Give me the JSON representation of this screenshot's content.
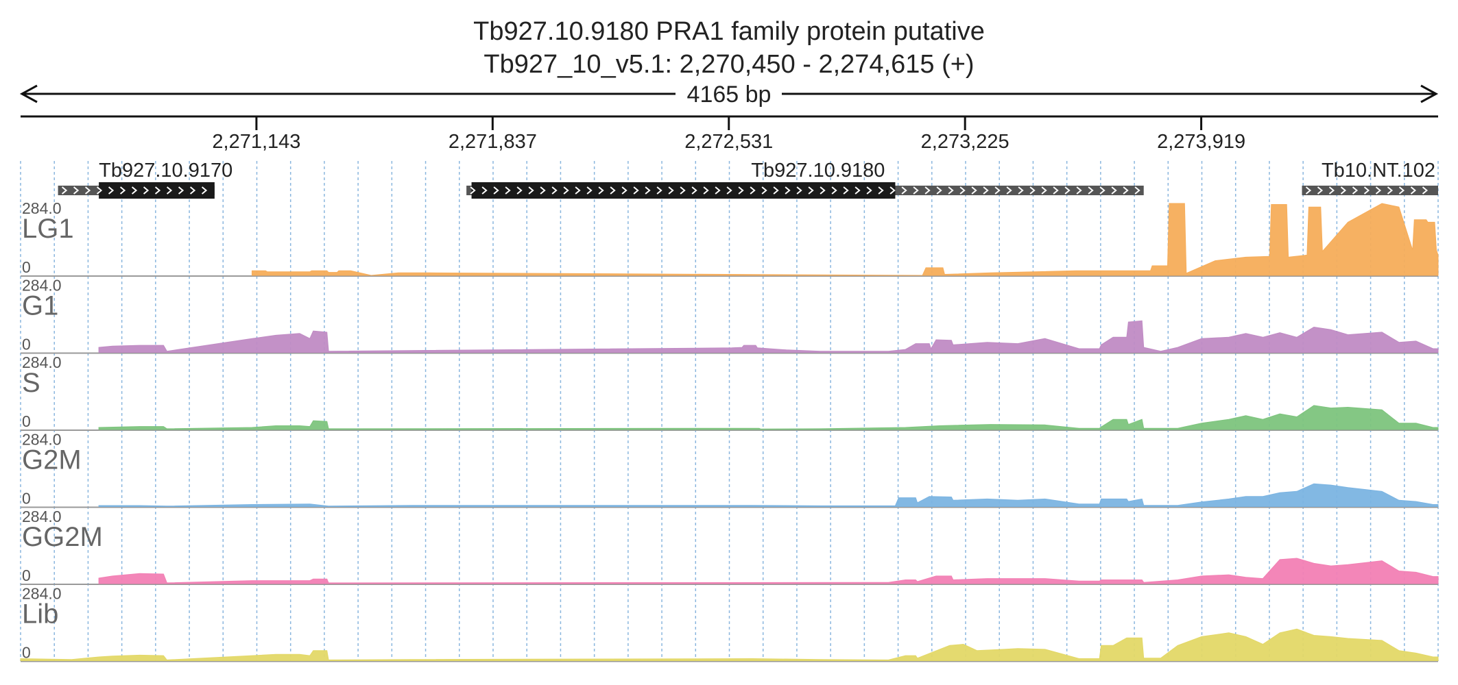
{
  "header": {
    "title": "Tb927.10.9180  PRA1 family protein  putative",
    "subtitle": "Tb927_10_v5.1: 2,270,450 - 2,274,615 (+)",
    "span_label": "4165 bp"
  },
  "chart_data": {
    "type": "area",
    "subtype": "genome-browser coverage tracks",
    "chromosome": "Tb927_10_v5.1",
    "region": [
      2270450,
      2274615
    ],
    "strand": "+",
    "span_bp": 4165,
    "ticks": [
      {
        "pos": 2271143,
        "label": "2,271,143"
      },
      {
        "pos": 2271837,
        "label": "2,271,837"
      },
      {
        "pos": 2272531,
        "label": "2,272,531"
      },
      {
        "pos": 2273225,
        "label": "2,273,225"
      },
      {
        "pos": 2273919,
        "label": "2,273,919"
      }
    ],
    "genes": [
      {
        "label": "Tb927.10.9170",
        "start": 2270560,
        "end": 2271020,
        "cds_start": 2270680,
        "cds_end": 2271020,
        "strand": "+"
      },
      {
        "label": "Tb927.10.9180",
        "start": 2271760,
        "end": 2273750,
        "cds_start": 2271775,
        "cds_end": 2273020,
        "strand": "+"
      },
      {
        "label": "Tb10.NT.102",
        "start": 2274215,
        "end": 2274615,
        "cds_start": null,
        "cds_end": null,
        "strand": "+"
      }
    ],
    "track_ymax": 284.0,
    "ymax_label": "284.0",
    "ymin_label": "0",
    "grid": "vertical dashed",
    "tracks": [
      {
        "name": "LG1",
        "color": "#f6ad5a",
        "points": [
          [
            2271130,
            18
          ],
          [
            2271170,
            18
          ],
          [
            2271175,
            14
          ],
          [
            2271300,
            14
          ],
          [
            2271305,
            18
          ],
          [
            2271350,
            18
          ],
          [
            2271355,
            12
          ],
          [
            2271380,
            12
          ],
          [
            2271385,
            18
          ],
          [
            2271420,
            18
          ],
          [
            2271480,
            0
          ],
          [
            2271560,
            10
          ],
          [
            2271650,
            10
          ],
          [
            2273100,
            0
          ],
          [
            2273110,
            30
          ],
          [
            2273160,
            30
          ],
          [
            2273165,
            4
          ],
          [
            2273300,
            10
          ],
          [
            2273550,
            18
          ],
          [
            2273770,
            18
          ],
          [
            2273775,
            38
          ],
          [
            2273820,
            38
          ],
          [
            2273825,
            284
          ],
          [
            2273870,
            284
          ],
          [
            2273875,
            8
          ],
          [
            2273960,
            58
          ],
          [
            2274050,
            72
          ],
          [
            2274120,
            75
          ],
          [
            2274125,
            280
          ],
          [
            2274170,
            280
          ],
          [
            2274175,
            72
          ],
          [
            2274230,
            80
          ],
          [
            2274235,
            270
          ],
          [
            2274270,
            270
          ],
          [
            2274275,
            95
          ],
          [
            2274350,
            210
          ],
          [
            2274450,
            284
          ],
          [
            2274500,
            270
          ],
          [
            2274540,
            100
          ],
          [
            2274545,
            220
          ],
          [
            2274580,
            220
          ],
          [
            2274585,
            210
          ],
          [
            2274605,
            210
          ],
          [
            2274610,
            100
          ],
          [
            2274615,
            80
          ]
        ]
      },
      {
        "name": "G1",
        "color": "#c08bc4",
        "points": [
          [
            2270680,
            20
          ],
          [
            2270720,
            25
          ],
          [
            2270800,
            28
          ],
          [
            2270870,
            28
          ],
          [
            2270880,
            5
          ],
          [
            2271130,
            55
          ],
          [
            2271200,
            68
          ],
          [
            2271270,
            75
          ],
          [
            2271300,
            55
          ],
          [
            2271310,
            85
          ],
          [
            2271350,
            80
          ],
          [
            2271355,
            5
          ],
          [
            2272540,
            18
          ],
          [
            2272570,
            20
          ],
          [
            2272575,
            28
          ],
          [
            2272610,
            28
          ],
          [
            2272615,
            18
          ],
          [
            2272700,
            10
          ],
          [
            2272800,
            5
          ],
          [
            2273000,
            5
          ],
          [
            2273050,
            12
          ],
          [
            2273080,
            35
          ],
          [
            2273120,
            35
          ],
          [
            2273125,
            15
          ],
          [
            2273140,
            50
          ],
          [
            2273185,
            48
          ],
          [
            2273190,
            30
          ],
          [
            2273290,
            40
          ],
          [
            2273380,
            35
          ],
          [
            2273460,
            55
          ],
          [
            2273560,
            15
          ],
          [
            2273620,
            15
          ],
          [
            2273625,
            30
          ],
          [
            2273660,
            60
          ],
          [
            2273700,
            60
          ],
          [
            2273705,
            120
          ],
          [
            2273745,
            125
          ],
          [
            2273750,
            20
          ],
          [
            2273800,
            5
          ],
          [
            2273850,
            20
          ],
          [
            2273920,
            55
          ],
          [
            2274000,
            60
          ],
          [
            2274050,
            75
          ],
          [
            2274100,
            60
          ],
          [
            2274150,
            78
          ],
          [
            2274200,
            60
          ],
          [
            2274250,
            100
          ],
          [
            2274300,
            90
          ],
          [
            2274350,
            70
          ],
          [
            2274450,
            80
          ],
          [
            2274500,
            40
          ],
          [
            2274550,
            45
          ],
          [
            2274600,
            15
          ],
          [
            2274615,
            15
          ]
        ]
      },
      {
        "name": "S",
        "color": "#7dc47d",
        "points": [
          [
            2270680,
            8
          ],
          [
            2270800,
            12
          ],
          [
            2270870,
            12
          ],
          [
            2270880,
            3
          ],
          [
            2271130,
            8
          ],
          [
            2271200,
            15
          ],
          [
            2271270,
            15
          ],
          [
            2271300,
            12
          ],
          [
            2271310,
            35
          ],
          [
            2271350,
            32
          ],
          [
            2271355,
            3
          ],
          [
            2272540,
            5
          ],
          [
            2272620,
            5
          ],
          [
            2272625,
            2
          ],
          [
            2272800,
            3
          ],
          [
            2273050,
            8
          ],
          [
            2273150,
            15
          ],
          [
            2273300,
            20
          ],
          [
            2273460,
            18
          ],
          [
            2273560,
            5
          ],
          [
            2273620,
            5
          ],
          [
            2273625,
            10
          ],
          [
            2273660,
            40
          ],
          [
            2273700,
            40
          ],
          [
            2273705,
            20
          ],
          [
            2273745,
            40
          ],
          [
            2273750,
            5
          ],
          [
            2273850,
            5
          ],
          [
            2273920,
            25
          ],
          [
            2274000,
            40
          ],
          [
            2274050,
            55
          ],
          [
            2274100,
            40
          ],
          [
            2274150,
            62
          ],
          [
            2274200,
            50
          ],
          [
            2274250,
            95
          ],
          [
            2274300,
            85
          ],
          [
            2274350,
            88
          ],
          [
            2274450,
            78
          ],
          [
            2274500,
            25
          ],
          [
            2274550,
            25
          ],
          [
            2274600,
            8
          ],
          [
            2274615,
            8
          ]
        ]
      },
      {
        "name": "G2M",
        "color": "#7bb4e2",
        "points": [
          [
            2270680,
            4
          ],
          [
            2270800,
            4
          ],
          [
            2270880,
            2
          ],
          [
            2271130,
            8
          ],
          [
            2271300,
            10
          ],
          [
            2271355,
            2
          ],
          [
            2271600,
            5
          ],
          [
            2272600,
            5
          ],
          [
            2272800,
            3
          ],
          [
            2273020,
            3
          ],
          [
            2273030,
            35
          ],
          [
            2273080,
            35
          ],
          [
            2273085,
            15
          ],
          [
            2273120,
            40
          ],
          [
            2273185,
            38
          ],
          [
            2273190,
            25
          ],
          [
            2273290,
            30
          ],
          [
            2273380,
            25
          ],
          [
            2273460,
            30
          ],
          [
            2273560,
            10
          ],
          [
            2273620,
            10
          ],
          [
            2273625,
            30
          ],
          [
            2273660,
            30
          ],
          [
            2273700,
            30
          ],
          [
            2273705,
            20
          ],
          [
            2273745,
            30
          ],
          [
            2273750,
            5
          ],
          [
            2273850,
            5
          ],
          [
            2273920,
            18
          ],
          [
            2274000,
            30
          ],
          [
            2274050,
            40
          ],
          [
            2274100,
            40
          ],
          [
            2274150,
            55
          ],
          [
            2274200,
            60
          ],
          [
            2274250,
            90
          ],
          [
            2274300,
            85
          ],
          [
            2274350,
            75
          ],
          [
            2274450,
            60
          ],
          [
            2274500,
            25
          ],
          [
            2274550,
            20
          ],
          [
            2274600,
            8
          ],
          [
            2274615,
            8
          ]
        ]
      },
      {
        "name": "GG2M",
        "color": "#f280b4",
        "points": [
          [
            2270680,
            22
          ],
          [
            2270720,
            30
          ],
          [
            2270800,
            40
          ],
          [
            2270870,
            38
          ],
          [
            2270880,
            3
          ],
          [
            2271130,
            12
          ],
          [
            2271200,
            12
          ],
          [
            2271300,
            12
          ],
          [
            2271310,
            18
          ],
          [
            2271350,
            18
          ],
          [
            2271355,
            3
          ],
          [
            2273000,
            5
          ],
          [
            2273050,
            15
          ],
          [
            2273080,
            15
          ],
          [
            2273085,
            8
          ],
          [
            2273140,
            30
          ],
          [
            2273185,
            30
          ],
          [
            2273190,
            15
          ],
          [
            2273290,
            20
          ],
          [
            2273460,
            20
          ],
          [
            2273560,
            10
          ],
          [
            2273620,
            10
          ],
          [
            2273625,
            15
          ],
          [
            2273700,
            15
          ],
          [
            2273745,
            15
          ],
          [
            2273750,
            5
          ],
          [
            2273850,
            15
          ],
          [
            2273920,
            30
          ],
          [
            2274000,
            35
          ],
          [
            2274050,
            25
          ],
          [
            2274100,
            20
          ],
          [
            2274150,
            95
          ],
          [
            2274200,
            100
          ],
          [
            2274250,
            80
          ],
          [
            2274300,
            70
          ],
          [
            2274350,
            75
          ],
          [
            2274450,
            90
          ],
          [
            2274500,
            50
          ],
          [
            2274550,
            45
          ],
          [
            2274600,
            28
          ],
          [
            2274615,
            28
          ]
        ]
      },
      {
        "name": "Lib",
        "color": "#e3d867",
        "points": [
          [
            2270450,
            8
          ],
          [
            2270600,
            5
          ],
          [
            2270680,
            15
          ],
          [
            2270720,
            18
          ],
          [
            2270800,
            22
          ],
          [
            2270870,
            20
          ],
          [
            2270880,
            3
          ],
          [
            2271130,
            20
          ],
          [
            2271200,
            25
          ],
          [
            2271270,
            25
          ],
          [
            2271300,
            20
          ],
          [
            2271310,
            40
          ],
          [
            2271350,
            40
          ],
          [
            2271355,
            3
          ],
          [
            2271600,
            5
          ],
          [
            2272600,
            8
          ],
          [
            2272800,
            5
          ],
          [
            2273000,
            3
          ],
          [
            2273050,
            20
          ],
          [
            2273080,
            20
          ],
          [
            2273085,
            10
          ],
          [
            2273180,
            60
          ],
          [
            2273220,
            65
          ],
          [
            2273260,
            40
          ],
          [
            2273340,
            45
          ],
          [
            2273380,
            48
          ],
          [
            2273460,
            45
          ],
          [
            2273560,
            8
          ],
          [
            2273620,
            8
          ],
          [
            2273625,
            60
          ],
          [
            2273660,
            60
          ],
          [
            2273700,
            90
          ],
          [
            2273745,
            90
          ],
          [
            2273750,
            10
          ],
          [
            2273800,
            10
          ],
          [
            2273850,
            60
          ],
          [
            2273920,
            95
          ],
          [
            2274000,
            110
          ],
          [
            2274050,
            95
          ],
          [
            2274100,
            65
          ],
          [
            2274150,
            110
          ],
          [
            2274200,
            125
          ],
          [
            2274250,
            100
          ],
          [
            2274300,
            95
          ],
          [
            2274350,
            88
          ],
          [
            2274450,
            80
          ],
          [
            2274500,
            40
          ],
          [
            2274550,
            30
          ],
          [
            2274600,
            15
          ],
          [
            2274615,
            15
          ]
        ]
      }
    ]
  }
}
